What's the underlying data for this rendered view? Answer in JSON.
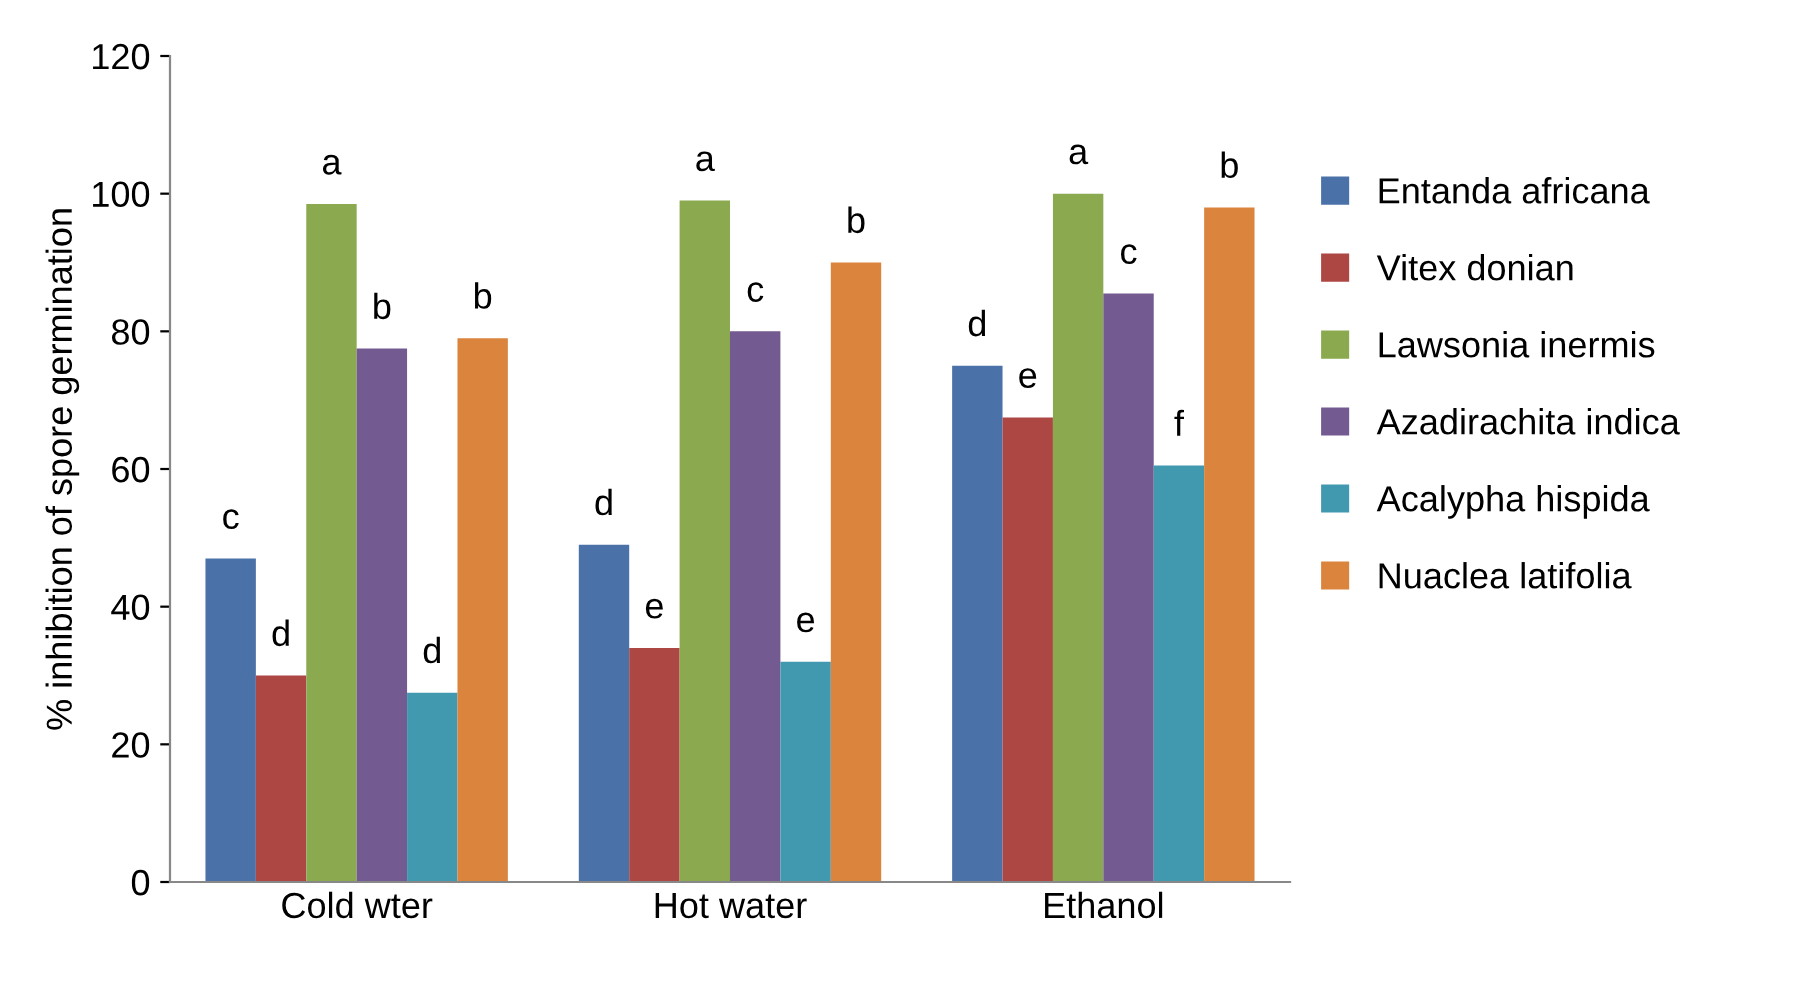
{
  "chart_data": {
    "type": "bar",
    "ylabel": "% inhibition of spore germination",
    "categories": [
      "Cold wter",
      "Hot water",
      "Ethanol"
    ],
    "series": [
      {
        "name": "Entanda africana",
        "color": "#4a71a8",
        "values": [
          47,
          49,
          75
        ],
        "value_labels": [
          "c",
          "d",
          "d"
        ]
      },
      {
        "name": "Vitex donian",
        "color": "#ad4744",
        "values": [
          30,
          34,
          67.5
        ],
        "value_labels": [
          "d",
          "e",
          "e"
        ]
      },
      {
        "name": "Lawsonia inermis",
        "color": "#8ba94e",
        "values": [
          98.5,
          99,
          100
        ],
        "value_labels": [
          "a",
          "a",
          "a"
        ]
      },
      {
        "name": "Azadirachita indica",
        "color": "#735a91",
        "values": [
          77.5,
          80,
          85.5
        ],
        "value_labels": [
          "b",
          "c",
          "c"
        ]
      },
      {
        "name": "Acalypha hispida",
        "color": "#4199b0",
        "values": [
          27.5,
          32,
          60.5
        ],
        "value_labels": [
          "d",
          "e",
          "f"
        ]
      },
      {
        "name": "Nuaclea latifolia",
        "color": "#db843d",
        "values": [
          79,
          90,
          98
        ],
        "value_labels": [
          "b",
          "b",
          "b"
        ]
      }
    ],
    "ylim": [
      0,
      120
    ],
    "yticks": [
      0,
      20,
      40,
      60,
      80,
      100,
      120
    ],
    "grid": false,
    "legend": "right"
  }
}
